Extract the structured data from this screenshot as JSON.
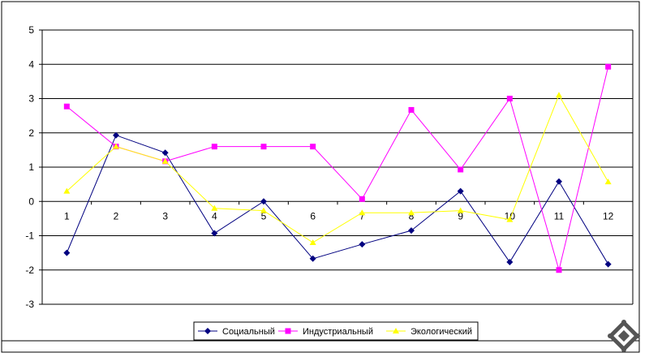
{
  "chart_data": {
    "type": "line",
    "categories": [
      "1",
      "2",
      "3",
      "4",
      "5",
      "6",
      "7",
      "8",
      "9",
      "10",
      "11",
      "12"
    ],
    "ylim": [
      -3,
      5
    ],
    "yticks": [
      "5",
      "4",
      "3",
      "2",
      "1",
      "0",
      "-1",
      "-2",
      "-3"
    ],
    "grid": "horizontal",
    "legend_position": "bottom",
    "series": [
      {
        "name": "Социальный",
        "color": "#000080",
        "marker": "diamond",
        "values": [
          -1.5,
          1.93,
          1.42,
          -0.93,
          0.0,
          -1.67,
          -1.25,
          -0.85,
          0.3,
          -1.77,
          0.58,
          -1.83
        ]
      },
      {
        "name": "Индустриальный",
        "color": "#ff00ff",
        "marker": "square",
        "values": [
          2.77,
          1.6,
          1.17,
          1.6,
          1.6,
          1.6,
          0.07,
          2.67,
          0.93,
          3.0,
          -2.0,
          3.93
        ]
      },
      {
        "name": "Экологический",
        "color": "#ffff00",
        "marker": "triangle",
        "values": [
          0.3,
          1.6,
          1.17,
          -0.2,
          -0.27,
          -1.2,
          -0.33,
          -0.33,
          -0.27,
          -0.53,
          3.1,
          0.57
        ]
      }
    ]
  }
}
